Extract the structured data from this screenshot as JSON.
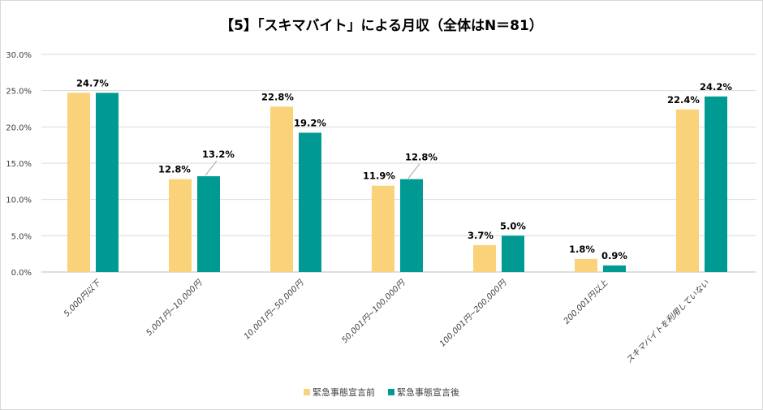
{
  "chart_data": {
    "type": "bar",
    "title": "【5】「スキマバイト」による月収（全体はN＝81）",
    "categories": [
      "5,000円以下",
      "5,001円~10,000円",
      "10,001円~50,000円",
      "50,001円~100,000円",
      "100,001円~200,000円",
      "200,001円以上",
      "スキマバイトを利用していない"
    ],
    "series": [
      {
        "name": "緊急事態宣言前",
        "color": "#F9D27A",
        "values": [
          24.7,
          12.8,
          22.8,
          11.9,
          3.7,
          1.8,
          22.4
        ]
      },
      {
        "name": "緊急事態宣言後",
        "color": "#009A93",
        "values": [
          24.7,
          13.2,
          19.2,
          12.8,
          5.0,
          0.9,
          24.2
        ]
      }
    ],
    "ylim": [
      0,
      30
    ],
    "yticks": [
      "0.0%",
      "5.0%",
      "10.0%",
      "15.0%",
      "20.0%",
      "25.0%",
      "30.0%"
    ],
    "grid": true,
    "legend": "bottom",
    "xlabel": "",
    "ylabel": ""
  }
}
